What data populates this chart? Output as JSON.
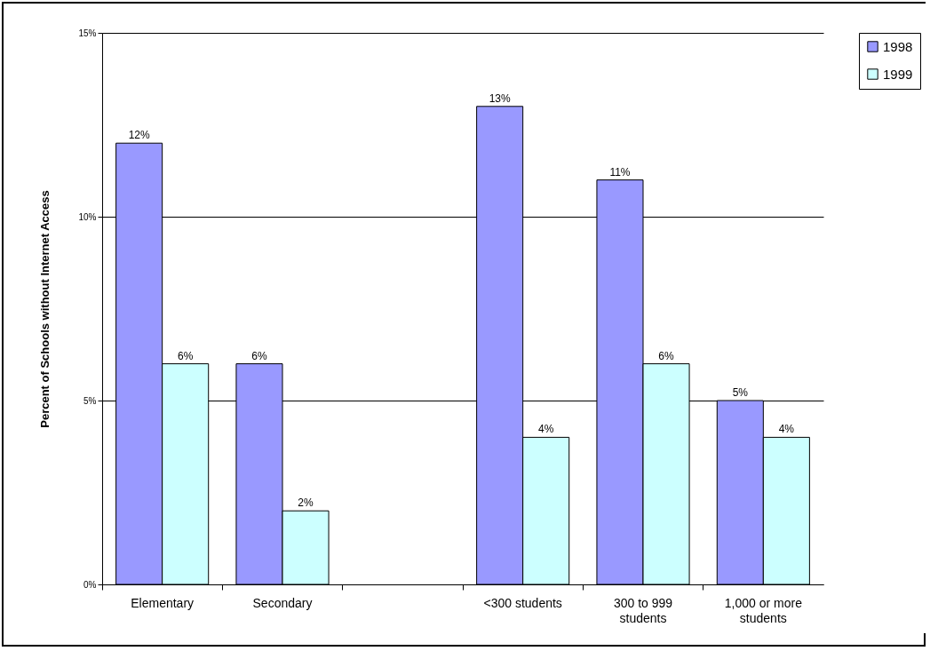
{
  "chart_data": {
    "type": "bar",
    "ylabel": "Percent of Schools without Internet Access",
    "categories": [
      "Elementary",
      "Secondary",
      null,
      "<300 students",
      "300 to 999 students",
      "1,000 or more students"
    ],
    "series": [
      {
        "name": "1998",
        "color": "#9999ff",
        "values": [
          12,
          6,
          null,
          13,
          11,
          5
        ],
        "value_labels": [
          "12%",
          "6%",
          null,
          "13%",
          "11%",
          "5%"
        ]
      },
      {
        "name": "1999",
        "color": "#ccffff",
        "values": [
          6,
          2,
          null,
          4,
          6,
          4
        ],
        "value_labels": [
          "6%",
          "2%",
          null,
          "4%",
          "6%",
          "4%"
        ]
      }
    ],
    "ylim": [
      0,
      15
    ],
    "yticks": [
      {
        "value": 0,
        "label": "0%"
      },
      {
        "value": 5,
        "label": "5%"
      },
      {
        "value": 10,
        "label": "10%"
      },
      {
        "value": 15,
        "label": "15%"
      }
    ],
    "grid": "y",
    "legend": "right"
  }
}
